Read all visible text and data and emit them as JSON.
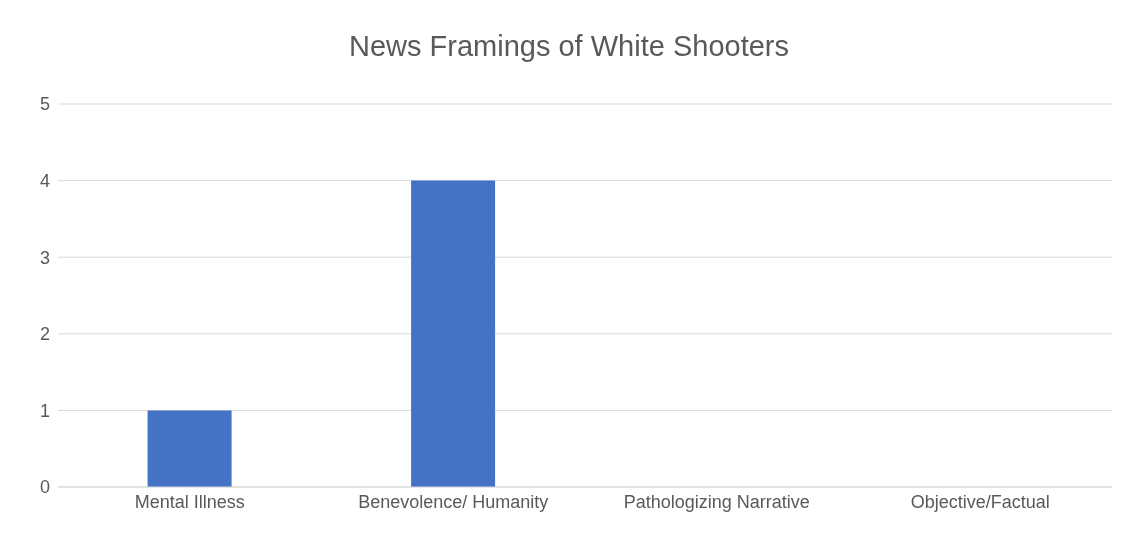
{
  "chart_data": {
    "type": "bar",
    "title": "News Framings of White Shooters",
    "categories": [
      "Mental Illness",
      "Benevolence/ Humanity",
      "Pathologizing Narrative",
      "Objective/Factual"
    ],
    "values": [
      1,
      4,
      0,
      0
    ],
    "color": "#4472c4",
    "ylim": [
      0,
      5
    ],
    "yticks": [
      0,
      1,
      2,
      3,
      4,
      5
    ],
    "grid": "y"
  }
}
